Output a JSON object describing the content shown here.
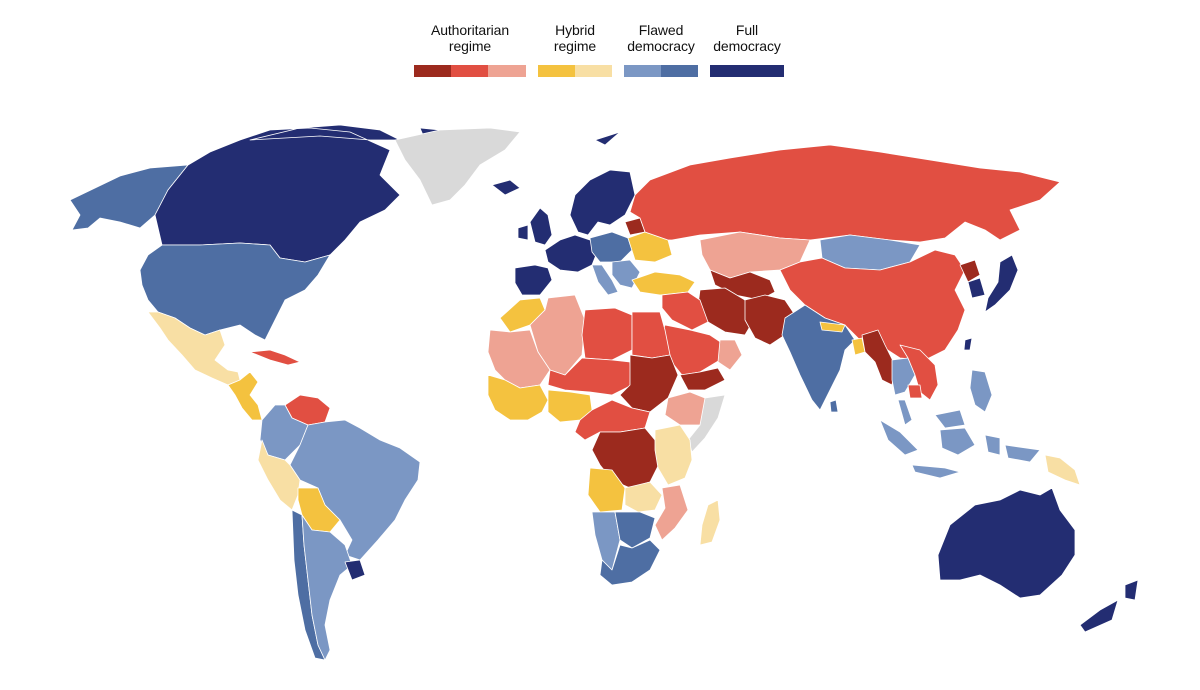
{
  "legend": {
    "groups": [
      {
        "id": "authoritarian",
        "label": "Authoritarian\nregime",
        "colors": [
          "#9c2a1e",
          "#e14f42",
          "#eea393"
        ]
      },
      {
        "id": "hybrid",
        "label": "Hybrid\nregime",
        "colors": [
          "#f4c23f",
          "#f8dfa4"
        ]
      },
      {
        "id": "flawed",
        "label": "Flawed\ndemocracy",
        "colors": [
          "#7b97c4",
          "#4e6ea3"
        ]
      },
      {
        "id": "full",
        "label": "Full\ndemocracy",
        "colors": [
          "#232d72"
        ]
      }
    ]
  },
  "no_data_color": "#d9d9d9",
  "regions": [
    {
      "name": "canada",
      "category": "full-democracy",
      "color": "#232d72"
    },
    {
      "name": "alaska",
      "category": "flawed-democracy",
      "color": "#4e6ea3"
    },
    {
      "name": "greenland",
      "category": "no-data",
      "color": "#d9d9d9"
    },
    {
      "name": "united-states",
      "category": "flawed-democracy",
      "color": "#4e6ea3"
    },
    {
      "name": "mexico",
      "category": "hybrid-regime",
      "color": "#f8dfa4"
    },
    {
      "name": "central-america",
      "category": "hybrid-regime",
      "color": "#f4c23f"
    },
    {
      "name": "cuba",
      "category": "authoritarian-regime",
      "color": "#e14f42"
    },
    {
      "name": "venezuela",
      "category": "authoritarian-regime",
      "color": "#e14f42"
    },
    {
      "name": "colombia",
      "category": "flawed-democracy",
      "color": "#7b97c4"
    },
    {
      "name": "peru",
      "category": "hybrid-regime",
      "color": "#f8dfa4"
    },
    {
      "name": "brazil",
      "category": "flawed-democracy",
      "color": "#7b97c4"
    },
    {
      "name": "bolivia",
      "category": "hybrid-regime",
      "color": "#f4c23f"
    },
    {
      "name": "argentina",
      "category": "flawed-democracy",
      "color": "#7b97c4"
    },
    {
      "name": "chile",
      "category": "flawed-democracy",
      "color": "#4e6ea3"
    },
    {
      "name": "uruguay",
      "category": "full-democracy",
      "color": "#232d72"
    },
    {
      "name": "iceland",
      "category": "full-democracy",
      "color": "#232d72"
    },
    {
      "name": "uk-ireland",
      "category": "full-democracy",
      "color": "#232d72"
    },
    {
      "name": "scandinavia",
      "category": "full-democracy",
      "color": "#232d72"
    },
    {
      "name": "western-europe",
      "category": "full-democracy",
      "color": "#232d72"
    },
    {
      "name": "iberia",
      "category": "full-democracy",
      "color": "#232d72"
    },
    {
      "name": "central-europe",
      "category": "flawed-democracy",
      "color": "#4e6ea3"
    },
    {
      "name": "italy",
      "category": "flawed-democracy",
      "color": "#7b97c4"
    },
    {
      "name": "balkans",
      "category": "flawed-democracy",
      "color": "#7b97c4"
    },
    {
      "name": "ukraine",
      "category": "hybrid-regime",
      "color": "#f4c23f"
    },
    {
      "name": "belarus",
      "category": "authoritarian-regime",
      "color": "#9c2a1e"
    },
    {
      "name": "turkey",
      "category": "hybrid-regime",
      "color": "#f4c23f"
    },
    {
      "name": "russia",
      "category": "authoritarian-regime",
      "color": "#e14f42"
    },
    {
      "name": "kazakhstan",
      "category": "authoritarian-regime",
      "color": "#eea393"
    },
    {
      "name": "central-asia",
      "category": "authoritarian-regime",
      "color": "#9c2a1e"
    },
    {
      "name": "mongolia",
      "category": "flawed-democracy",
      "color": "#7b97c4"
    },
    {
      "name": "china",
      "category": "authoritarian-regime",
      "color": "#e14f42"
    },
    {
      "name": "north-korea",
      "category": "authoritarian-regime",
      "color": "#9c2a1e"
    },
    {
      "name": "south-korea",
      "category": "full-democracy",
      "color": "#232d72"
    },
    {
      "name": "japan",
      "category": "full-democracy",
      "color": "#232d72"
    },
    {
      "name": "taiwan",
      "category": "full-democracy",
      "color": "#232d72"
    },
    {
      "name": "iran",
      "category": "authoritarian-regime",
      "color": "#9c2a1e"
    },
    {
      "name": "afghanistan-pakistan",
      "category": "authoritarian-regime",
      "color": "#9c2a1e"
    },
    {
      "name": "india",
      "category": "flawed-democracy",
      "color": "#4e6ea3"
    },
    {
      "name": "nepal",
      "category": "hybrid-regime",
      "color": "#f4c23f"
    },
    {
      "name": "bangladesh",
      "category": "hybrid-regime",
      "color": "#f4c23f"
    },
    {
      "name": "sri-lanka",
      "category": "flawed-democracy",
      "color": "#4e6ea3"
    },
    {
      "name": "myanmar",
      "category": "authoritarian-regime",
      "color": "#9c2a1e"
    },
    {
      "name": "thailand",
      "category": "flawed-democracy",
      "color": "#7b97c4"
    },
    {
      "name": "vietnam-laos",
      "category": "authoritarian-regime",
      "color": "#e14f42"
    },
    {
      "name": "cambodia",
      "category": "authoritarian-regime",
      "color": "#e14f42"
    },
    {
      "name": "malaysia",
      "category": "flawed-democracy",
      "color": "#7b97c4"
    },
    {
      "name": "philippines",
      "category": "flawed-democracy",
      "color": "#7b97c4"
    },
    {
      "name": "indonesia",
      "category": "flawed-democracy",
      "color": "#7b97c4"
    },
    {
      "name": "papua-new-guinea",
      "category": "hybrid-regime",
      "color": "#f8dfa4"
    },
    {
      "name": "australia",
      "category": "full-democracy",
      "color": "#232d72"
    },
    {
      "name": "new-zealand",
      "category": "full-democracy",
      "color": "#232d72"
    },
    {
      "name": "saudi-arabia",
      "category": "authoritarian-regime",
      "color": "#e14f42"
    },
    {
      "name": "yemen",
      "category": "authoritarian-regime",
      "color": "#9c2a1e"
    },
    {
      "name": "oman-uae",
      "category": "authoritarian-regime",
      "color": "#eea393"
    },
    {
      "name": "iraq-syria",
      "category": "authoritarian-regime",
      "color": "#e14f42"
    },
    {
      "name": "morocco",
      "category": "hybrid-regime",
      "color": "#f4c23f"
    },
    {
      "name": "algeria",
      "category": "authoritarian-regime",
      "color": "#eea393"
    },
    {
      "name": "libya",
      "category": "authoritarian-regime",
      "color": "#e14f42"
    },
    {
      "name": "egypt",
      "category": "authoritarian-regime",
      "color": "#e14f42"
    },
    {
      "name": "mauritania-mali",
      "category": "authoritarian-regime",
      "color": "#eea393"
    },
    {
      "name": "niger-chad",
      "category": "authoritarian-regime",
      "color": "#e14f42"
    },
    {
      "name": "sudan",
      "category": "authoritarian-regime",
      "color": "#9c2a1e"
    },
    {
      "name": "ethiopia",
      "category": "authoritarian-regime",
      "color": "#eea393"
    },
    {
      "name": "somalia",
      "category": "no-data",
      "color": "#d9d9d9"
    },
    {
      "name": "west-africa",
      "category": "hybrid-regime",
      "color": "#f4c23f"
    },
    {
      "name": "nigeria",
      "category": "hybrid-regime",
      "color": "#f4c23f"
    },
    {
      "name": "central-africa",
      "category": "authoritarian-regime",
      "color": "#e14f42"
    },
    {
      "name": "drc",
      "category": "authoritarian-regime",
      "color": "#9c2a1e"
    },
    {
      "name": "east-africa",
      "category": "hybrid-regime",
      "color": "#f8dfa4"
    },
    {
      "name": "angola",
      "category": "hybrid-regime",
      "color": "#f4c23f"
    },
    {
      "name": "zambia",
      "category": "hybrid-regime",
      "color": "#f8dfa4"
    },
    {
      "name": "mozambique",
      "category": "authoritarian-regime",
      "color": "#eea393"
    },
    {
      "name": "namibia",
      "category": "flawed-democracy",
      "color": "#7b97c4"
    },
    {
      "name": "botswana-zimbabwe",
      "category": "flawed-democracy",
      "color": "#4e6ea3"
    },
    {
      "name": "south-africa",
      "category": "flawed-democracy",
      "color": "#4e6ea3"
    },
    {
      "name": "madagascar",
      "category": "hybrid-regime",
      "color": "#f8dfa4"
    }
  ]
}
